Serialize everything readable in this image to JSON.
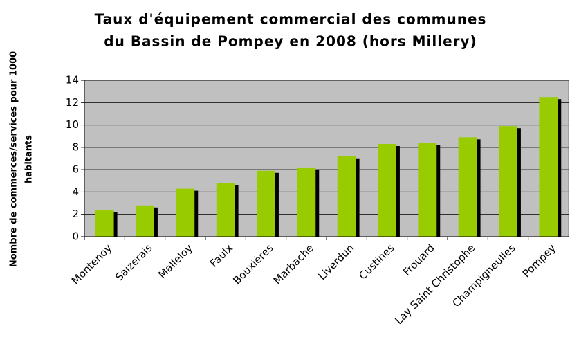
{
  "chart_data": {
    "type": "bar",
    "title": [
      "Taux d'équipement commercial des communes",
      "du Bassin de Pompey en 2008 (hors Millery)"
    ],
    "y_label": [
      "Nombre de commerces/services pour 1000",
      "habitants"
    ],
    "categories": [
      "Montenoy",
      "Saizerais",
      "Malleloy",
      "Faulx",
      "Bouxières",
      "Marbache",
      "Liverdun",
      "Custines",
      "Frouard",
      "Lay Saint Christophe",
      "Champigneulles",
      "Pompey"
    ],
    "values": [
      2.4,
      2.8,
      4.3,
      4.8,
      5.9,
      6.2,
      7.2,
      8.3,
      8.4,
      8.9,
      9.9,
      12.5
    ],
    "color": "#99cc00",
    "shadow_color": "#000000",
    "plot_background": "#c0c0c0",
    "ylim": [
      0,
      14
    ],
    "yticks": [
      0,
      2,
      4,
      6,
      8,
      10,
      12,
      14
    ],
    "grid": true
  }
}
